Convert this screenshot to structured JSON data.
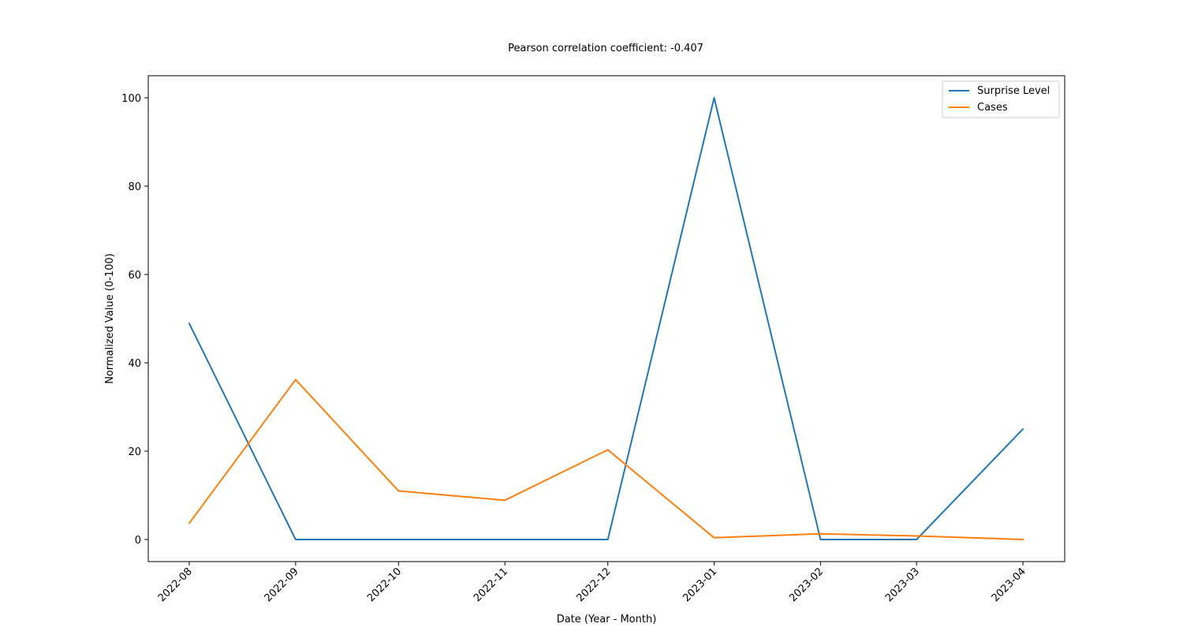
{
  "chart_data": {
    "type": "line",
    "title": "Pearson correlation coefficient: -0.407",
    "xlabel": "Date (Year - Month)",
    "ylabel": "Normalized Value (0-100)",
    "categories": [
      "2022-08",
      "2022-09",
      "2022-10",
      "2022-11",
      "2022-12",
      "2023-01",
      "2023-02",
      "2023-03",
      "2023-04"
    ],
    "x_dates": [
      "2022-08-01",
      "2022-09-01",
      "2022-10-01",
      "2022-11-01",
      "2022-12-01",
      "2023-01-01",
      "2023-02-01",
      "2023-03-01",
      "2023-04-01"
    ],
    "series": [
      {
        "name": "Surprise Level",
        "color": "#1f77b4",
        "values": [
          48.9,
          0,
          0,
          0,
          0,
          100,
          0,
          0,
          25
        ]
      },
      {
        "name": "Cases",
        "color": "#ff7f0e",
        "values": [
          3.7,
          36.2,
          11.0,
          8.9,
          20.3,
          0.4,
          1.3,
          0.8,
          0
        ]
      }
    ],
    "ylim": [
      -5,
      105
    ],
    "yticks": [
      0,
      20,
      40,
      60,
      80,
      100
    ],
    "grid": false,
    "legend_position": "top-right"
  }
}
